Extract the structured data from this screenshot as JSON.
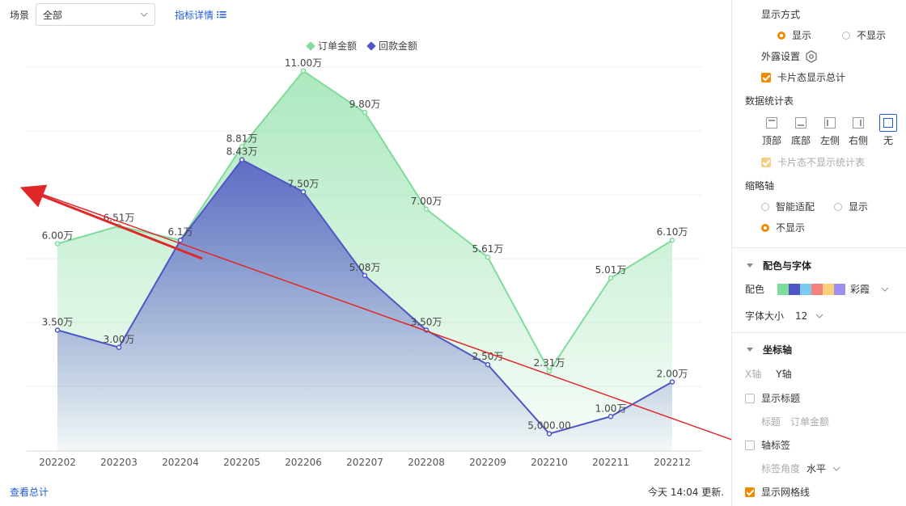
{
  "toolbar": {
    "scene_label": "场景",
    "scene_value": "全部",
    "detail_link": "指标详情"
  },
  "footer": {
    "view_total": "查看总计",
    "update_time": "今天 14:04 更新."
  },
  "colors": {
    "series_order": "#7fdc9b",
    "series_payment": "#4e56c5",
    "annotation_arrow": "#e0282b",
    "accent": "#f08a00",
    "link": "#1e5bd8"
  },
  "chart_data": {
    "type": "area",
    "categories": [
      "202202",
      "202203",
      "202204",
      "202205",
      "202206",
      "202207",
      "202208",
      "202209",
      "202210",
      "202211",
      "202212"
    ],
    "series": [
      {
        "name": "订单金额",
        "values": [
          60000,
          65100,
          61000,
          88100,
          110000,
          98000,
          70000,
          56100,
          23100,
          50100,
          61000
        ],
        "labels": [
          "6.00万",
          "6.51万",
          "6.1万",
          "8.81万",
          "11.00万",
          "9.80万",
          "7.00万",
          "5.61万",
          "2.31万",
          "5.01万",
          "6.10万"
        ]
      },
      {
        "name": "回款金额",
        "values": [
          35000,
          30000,
          61000,
          84300,
          75000,
          50800,
          35000,
          25000,
          5000,
          10000,
          20000
        ],
        "labels": [
          "3.50万",
          "3.00万",
          "",
          "8.43万",
          "7.50万",
          "5.08万",
          "3.50万",
          "2.50万",
          "5,000.00",
          "1.00万",
          "2.00万"
        ]
      }
    ],
    "legend": "top-center",
    "grid": true,
    "ylim": [
      0,
      120000
    ]
  },
  "panel": {
    "display_mode": {
      "title": "显示方式",
      "options": [
        "显示",
        "不显示"
      ],
      "selected": "显示"
    },
    "exposure": {
      "label": "外露设置",
      "icon": "gear-icon"
    },
    "card_total": {
      "label": "卡片态显示总计",
      "checked": true
    },
    "stat_table": {
      "title": "数据统计表",
      "positions": [
        "顶部",
        "底部",
        "左侧",
        "右侧",
        "无"
      ],
      "selected": "无",
      "card_hide_label": "卡片态不显示统计表"
    },
    "zoom_axis": {
      "title": "缩略轴",
      "options": [
        "智能适配",
        "显示",
        "不显示"
      ],
      "selected": "不显示"
    },
    "color_font": {
      "title": "配色与字体",
      "color_label": "配色",
      "palette": [
        "#7fdc9b",
        "#4e56c5",
        "#7ec9f0",
        "#f3827c",
        "#f8d07a",
        "#9b8ff0"
      ],
      "palette_name": "彩霞",
      "font_size_label": "字体大小",
      "font_size_value": "12"
    },
    "axis": {
      "title": "坐标轴",
      "tabs": [
        "X轴",
        "Y轴"
      ],
      "show_title_label": "显示标题",
      "title_label": "标题",
      "title_value": "订单金额",
      "axis_tag_label": "轴标签",
      "tag_angle_label": "标签角度",
      "tag_angle_value": "水平",
      "show_grid_label": "显示网格线"
    }
  }
}
